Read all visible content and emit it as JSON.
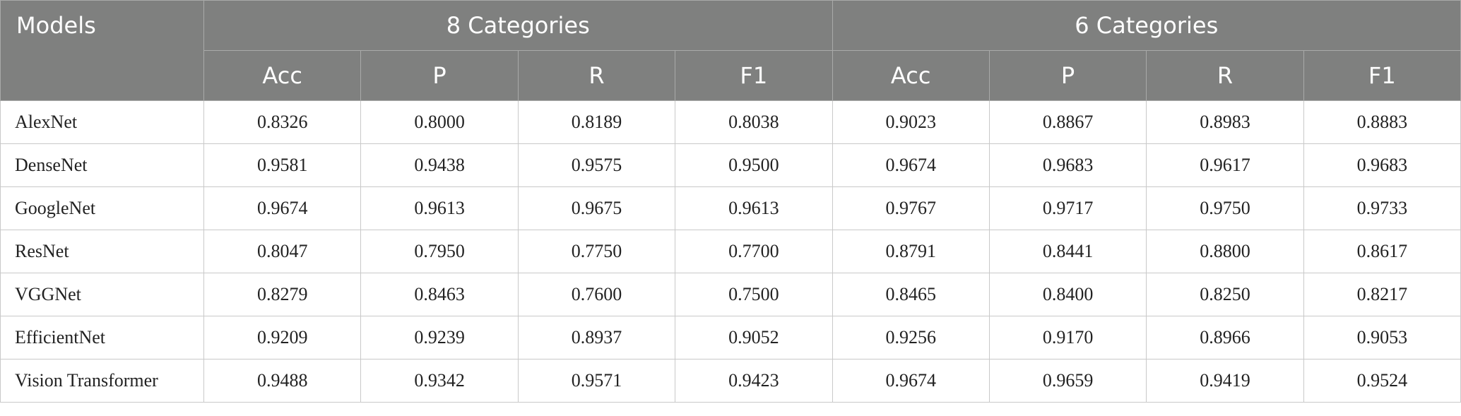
{
  "table": {
    "models_header": "Models",
    "groups": [
      "8 Categories",
      "6 Categories"
    ],
    "subheaders": [
      "Acc",
      "P",
      "R",
      "F1",
      "Acc",
      "P",
      "R",
      "F1"
    ],
    "rows": [
      [
        "AlexNet",
        "0.8326",
        "0.8000",
        "0.8189",
        "0.8038",
        "0.9023",
        "0.8867",
        "0.8983",
        "0.8883"
      ],
      [
        "DenseNet",
        "0.9581",
        "0.9438",
        "0.9575",
        "0.9500",
        "0.9674",
        "0.9683",
        "0.9617",
        "0.9683"
      ],
      [
        "GoogleNet",
        "0.9674",
        "0.9613",
        "0.9675",
        "0.9613",
        "0.9767",
        "0.9717",
        "0.9750",
        "0.9733"
      ],
      [
        "ResNet",
        "0.8047",
        "0.7950",
        "0.7750",
        "0.7700",
        "0.8791",
        "0.8441",
        "0.8800",
        "0.8617"
      ],
      [
        "VGGNet",
        "0.8279",
        "0.8463",
        "0.7600",
        "0.7500",
        "0.8465",
        "0.8400",
        "0.8250",
        "0.8217"
      ],
      [
        "EfficientNet",
        "0.9209",
        "0.9239",
        "0.8937",
        "0.9052",
        "0.9256",
        "0.9170",
        "0.8966",
        "0.9053"
      ],
      [
        "Vision Transformer",
        "0.9488",
        "0.9342",
        "0.9571",
        "0.9423",
        "0.9674",
        "0.9659",
        "0.9419",
        "0.9524"
      ]
    ]
  }
}
